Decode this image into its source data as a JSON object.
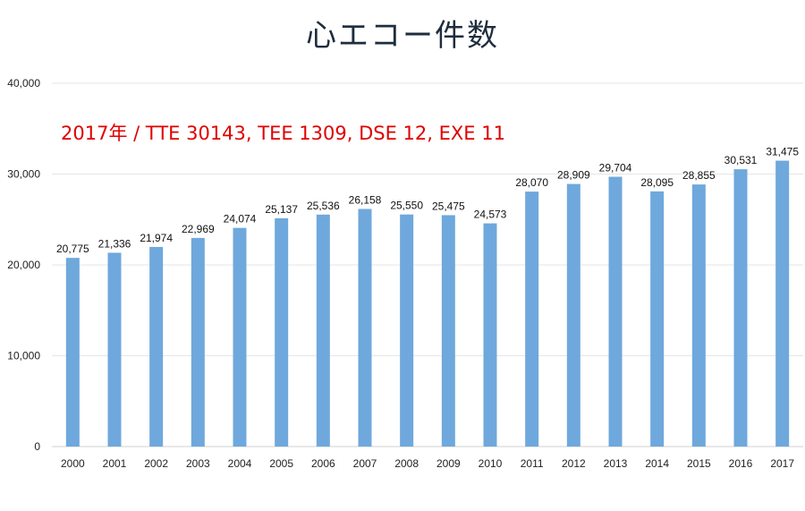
{
  "chart_data": {
    "type": "bar",
    "title": "心エコー件数",
    "annotation": "2017年 / TTE 30143, TEE 1309, DSE 12, EXE 11",
    "xlabel": "",
    "ylabel": "",
    "categories": [
      "2000",
      "2001",
      "2002",
      "2003",
      "2004",
      "2005",
      "2006",
      "2007",
      "2008",
      "2009",
      "2010",
      "2011",
      "2012",
      "2013",
      "2014",
      "2015",
      "2016",
      "2017"
    ],
    "values": [
      20775,
      21336,
      21974,
      22969,
      24074,
      25137,
      25536,
      26158,
      25550,
      25475,
      24573,
      28070,
      28909,
      29704,
      28095,
      28855,
      30531,
      31475
    ],
    "data_labels": [
      "20,775",
      "21,336",
      "21,974",
      "22,969",
      "24,074",
      "25,137",
      "25,536",
      "26,158",
      "25,550",
      "25,475",
      "24,573",
      "28,070",
      "28,909",
      "29,704",
      "28,095",
      "28,855",
      "30,531",
      "31,475"
    ],
    "ylim": [
      0,
      40000
    ],
    "yticks": [
      0,
      10000,
      20000,
      30000,
      40000
    ],
    "ytick_labels": [
      "0",
      "10,000",
      "20,000",
      "30,000",
      "40,000"
    ],
    "grid": true,
    "legend": "none",
    "bar_color": "#6fa8dc"
  }
}
